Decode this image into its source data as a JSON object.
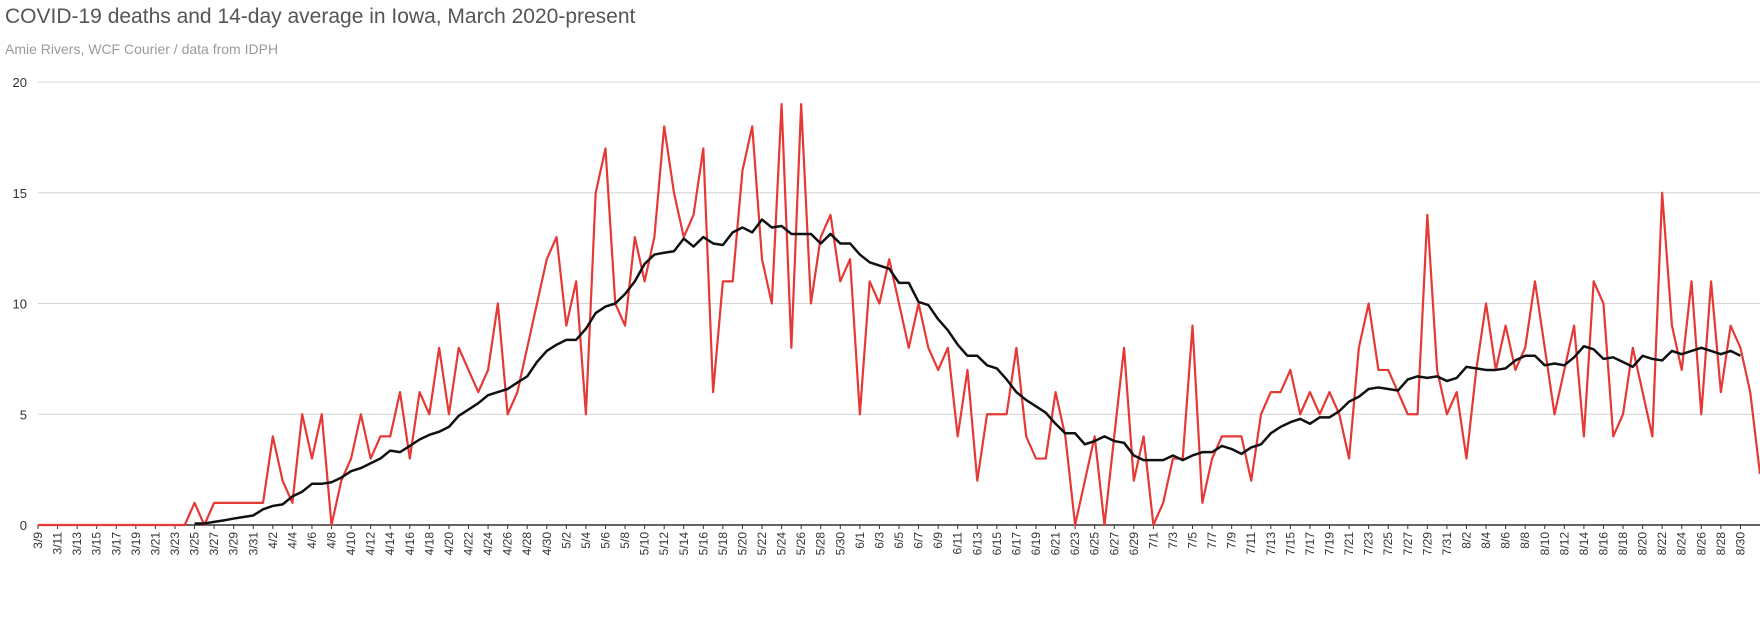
{
  "title": "COVID-19 deaths and 14-day average in Iowa, March 2020-present",
  "subtitle": "Amie Rivers, WCF Courier / data from IDPH",
  "colors": {
    "deaths": "#e53935",
    "average": "#111111",
    "grid": "#d4d4d4",
    "axis": "#333333"
  },
  "chart_data": {
    "type": "line",
    "title": "COVID-19 deaths and 14-day average in Iowa, March 2020-present",
    "subtitle": "Amie Rivers, WCF Courier / data from IDPH",
    "xlabel": "",
    "ylabel": "",
    "ylim": [
      0,
      20
    ],
    "yticks": [
      0,
      5,
      10,
      15,
      20
    ],
    "grid": true,
    "legend": "none",
    "x_start": "3/9",
    "x_tick_labels": [
      "3/9",
      "3/11",
      "3/13",
      "3/15",
      "3/17",
      "3/19",
      "3/21",
      "3/23",
      "3/25",
      "3/27",
      "3/29",
      "3/31",
      "4/2",
      "4/4",
      "4/6",
      "4/8",
      "4/10",
      "4/12",
      "4/14",
      "4/16",
      "4/18",
      "4/20",
      "4/22",
      "4/24",
      "4/26",
      "4/28",
      "4/30",
      "5/2",
      "5/4",
      "5/6",
      "5/8",
      "5/10",
      "5/12",
      "5/14",
      "5/16",
      "5/18",
      "5/20",
      "5/22",
      "5/24",
      "5/26",
      "5/28",
      "5/30",
      "6/1",
      "6/3",
      "6/5",
      "6/7",
      "6/9",
      "6/11",
      "6/13",
      "6/15",
      "6/17",
      "6/19",
      "6/21",
      "6/23",
      "6/25",
      "6/27",
      "6/29",
      "7/1",
      "7/3",
      "7/5",
      "7/7",
      "7/9",
      "7/11",
      "7/13",
      "7/15",
      "7/17",
      "7/19",
      "7/21",
      "7/23",
      "7/25",
      "7/27",
      "7/29",
      "7/31",
      "8/2",
      "8/4",
      "8/6",
      "8/8",
      "8/10",
      "8/12",
      "8/14",
      "8/16",
      "8/18",
      "8/20",
      "8/22",
      "8/24",
      "8/26",
      "8/28",
      "8/30"
    ],
    "series": [
      {
        "key": "deaths",
        "values": [
          0,
          0,
          0,
          0,
          0,
          0,
          0,
          0,
          0,
          0,
          0,
          0,
          0,
          0,
          0,
          0,
          1,
          0,
          1,
          1,
          1,
          1,
          1,
          1,
          4,
          2,
          1,
          5,
          3,
          5,
          0,
          2,
          3,
          5,
          3,
          4,
          4,
          6,
          3,
          6,
          5,
          8,
          5,
          8,
          7,
          6,
          7,
          10,
          5,
          6,
          8,
          10,
          12,
          13,
          9,
          11,
          5,
          15,
          17,
          10,
          9,
          13,
          11,
          13,
          18,
          15,
          13,
          14,
          17,
          6,
          11,
          11,
          16,
          18,
          12,
          10,
          19,
          8,
          19,
          10,
          13,
          14,
          11,
          12,
          5,
          11,
          10,
          12,
          10,
          8,
          10,
          8,
          7,
          8,
          4,
          7,
          2,
          5,
          5,
          5,
          8,
          4,
          3,
          3,
          6,
          4,
          0,
          2,
          4,
          0,
          4,
          8,
          2,
          4,
          0,
          1,
          3,
          3,
          9,
          1,
          3,
          4,
          4,
          4,
          2,
          5,
          6,
          6,
          7,
          5,
          6,
          5,
          6,
          5,
          3,
          8,
          10,
          7,
          7,
          6,
          5,
          5,
          14,
          7,
          5,
          6,
          3,
          7,
          10,
          7,
          9,
          7,
          8,
          11,
          8,
          5,
          7,
          9,
          4,
          11,
          10,
          4,
          5,
          8,
          6,
          4,
          15,
          9,
          7,
          11,
          5,
          11,
          6,
          9,
          8,
          6,
          2.3
        ]
      },
      {
        "key": "average",
        "values": [
          null,
          null,
          null,
          null,
          null,
          null,
          null,
          null,
          null,
          null,
          null,
          null,
          null,
          null,
          null,
          null,
          0.07,
          0.07,
          0.14,
          0.21,
          0.29,
          0.36,
          0.43,
          0.71,
          0.86,
          0.93,
          1.29,
          1.5,
          1.86,
          1.86,
          1.93,
          2.14,
          2.43,
          2.57,
          2.79,
          3.0,
          3.36,
          3.29,
          3.57,
          3.86,
          4.07,
          4.21,
          4.43,
          4.93,
          5.21,
          5.5,
          5.86,
          6.0,
          6.14,
          6.43,
          6.71,
          7.36,
          7.86,
          8.14,
          8.36,
          8.36,
          8.86,
          9.57,
          9.86,
          10.0,
          10.43,
          11.0,
          11.79,
          12.21,
          12.29,
          12.36,
          12.93,
          12.57,
          13.0,
          12.71,
          12.64,
          13.21,
          13.43,
          13.21,
          13.79,
          13.43,
          13.5,
          13.14,
          13.14,
          13.14,
          12.71,
          13.14,
          12.71,
          12.71,
          12.21,
          11.86,
          11.71,
          11.57,
          10.93,
          10.93,
          10.07,
          9.93,
          9.29,
          8.79,
          8.14,
          7.64,
          7.64,
          7.21,
          7.07,
          6.57,
          6.0,
          5.64,
          5.36,
          5.07,
          4.57,
          4.14,
          4.14,
          3.64,
          3.79,
          4.0,
          3.79,
          3.71,
          3.14,
          2.93,
          2.93,
          2.93,
          3.14,
          2.93,
          3.14,
          3.29,
          3.29,
          3.57,
          3.43,
          3.21,
          3.5,
          3.64,
          4.14,
          4.43,
          4.64,
          4.79,
          4.57,
          4.86,
          4.86,
          5.14,
          5.57,
          5.79,
          6.14,
          6.21,
          6.14,
          6.07,
          6.57,
          6.71,
          6.64,
          6.71,
          6.5,
          6.64,
          7.14,
          7.07,
          7.0,
          7.0,
          7.07,
          7.43,
          7.64,
          7.64,
          7.21,
          7.29,
          7.21,
          7.57,
          8.07,
          7.93,
          7.5,
          7.57,
          7.36,
          7.14,
          7.64,
          7.5,
          7.43,
          7.86,
          7.71,
          7.86,
          8.0,
          7.86,
          7.71,
          7.86,
          7.64
        ]
      }
    ]
  }
}
